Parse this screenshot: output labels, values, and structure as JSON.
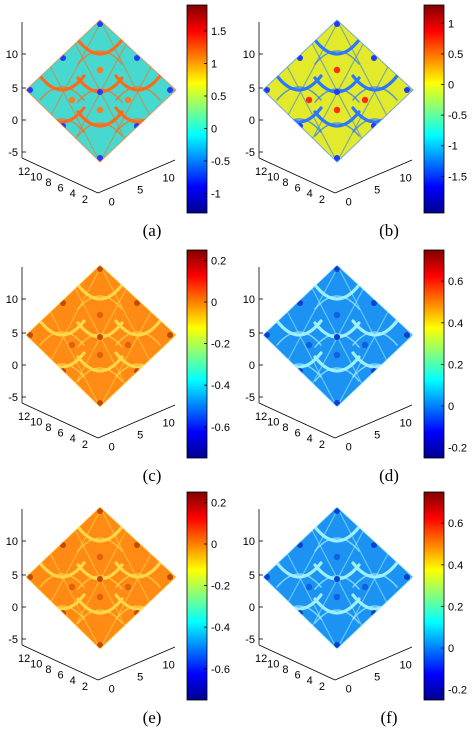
{
  "panels": [
    {
      "caption": "(a)",
      "z_ticks": [
        "10",
        "5",
        "0",
        "-5"
      ],
      "left_axis_ticks": [
        "12",
        "10",
        "8",
        "6",
        "4",
        "2"
      ],
      "right_axis_ticks": [
        "0",
        "5",
        "10"
      ],
      "colorbar": {
        "range": [
          -1.3,
          1.9
        ],
        "ticks": [
          "1.5",
          "1",
          "0.5",
          "0",
          "-0.5",
          "-1"
        ]
      },
      "surface": {
        "base_color": "#47d9cf",
        "ridge_color": "#ff6a1a",
        "peak_color": "#1f3bff",
        "dot_color": "#ff7a1a"
      }
    },
    {
      "caption": "(b)",
      "z_ticks": [
        "10",
        "5",
        "0",
        "-5"
      ],
      "left_axis_ticks": [
        "12",
        "10",
        "8",
        "6",
        "4",
        "2"
      ],
      "right_axis_ticks": [
        "0",
        "5",
        "10"
      ],
      "colorbar": {
        "range": [
          -2.1,
          1.3
        ],
        "ticks": [
          "1",
          "0.5",
          "0",
          "-0.5",
          "-1",
          "-1.5"
        ]
      },
      "surface": {
        "base_color": "#e3ea2c",
        "ridge_color": "#2a78ff",
        "peak_color": "#1f3bff",
        "dot_color": "#ff2a10"
      }
    },
    {
      "caption": "(c)",
      "z_ticks": [
        "10",
        "5",
        "0",
        "-5"
      ],
      "left_axis_ticks": [
        "12",
        "10",
        "8",
        "6",
        "4",
        "2"
      ],
      "right_axis_ticks": [
        "0",
        "5",
        "10"
      ],
      "colorbar": {
        "range": [
          -0.75,
          0.25
        ],
        "ticks": [
          "0.2",
          "0",
          "-0.2",
          "-0.4",
          "-0.6"
        ]
      },
      "surface": {
        "base_color": "#ff8a14",
        "ridge_color": "#ffd84a",
        "peak_color": "#c14a08",
        "dot_color": "#e26010"
      }
    },
    {
      "caption": "(d)",
      "z_ticks": [
        "10",
        "5",
        "0",
        "-5"
      ],
      "left_axis_ticks": [
        "12",
        "10",
        "8",
        "6",
        "4",
        "2"
      ],
      "right_axis_ticks": [
        "0",
        "5",
        "10"
      ],
      "colorbar": {
        "range": [
          -0.25,
          0.75
        ],
        "ticks": [
          "0.6",
          "0.4",
          "0.2",
          "0",
          "-0.2"
        ]
      },
      "surface": {
        "base_color": "#1c93f2",
        "ridge_color": "#9ff0ff",
        "peak_color": "#0b3fcf",
        "dot_color": "#1060e0"
      }
    },
    {
      "caption": "(e)",
      "z_ticks": [
        "10",
        "5",
        "0",
        "-5"
      ],
      "left_axis_ticks": [
        "12",
        "10",
        "8",
        "6",
        "4",
        "2"
      ],
      "right_axis_ticks": [
        "0",
        "5",
        "10"
      ],
      "colorbar": {
        "range": [
          -0.75,
          0.25
        ],
        "ticks": [
          "0.2",
          "0",
          "-0.2",
          "-0.4",
          "-0.6"
        ]
      },
      "surface": {
        "base_color": "#ff8a14",
        "ridge_color": "#ffd84a",
        "peak_color": "#c14a08",
        "dot_color": "#e26010"
      }
    },
    {
      "caption": "(f)",
      "z_ticks": [
        "10",
        "5",
        "0",
        "-5"
      ],
      "left_axis_ticks": [
        "12",
        "10",
        "8",
        "6",
        "4",
        "2"
      ],
      "right_axis_ticks": [
        "0",
        "5",
        "10"
      ],
      "colorbar": {
        "range": [
          -0.25,
          0.75
        ],
        "ticks": [
          "0.6",
          "0.4",
          "0.2",
          "0",
          "-0.2"
        ]
      },
      "surface": {
        "base_color": "#1c93f2",
        "ridge_color": "#9ff0ff",
        "peak_color": "#0b3fcf",
        "dot_color": "#1060e0"
      }
    }
  ],
  "colormap": "jet"
}
